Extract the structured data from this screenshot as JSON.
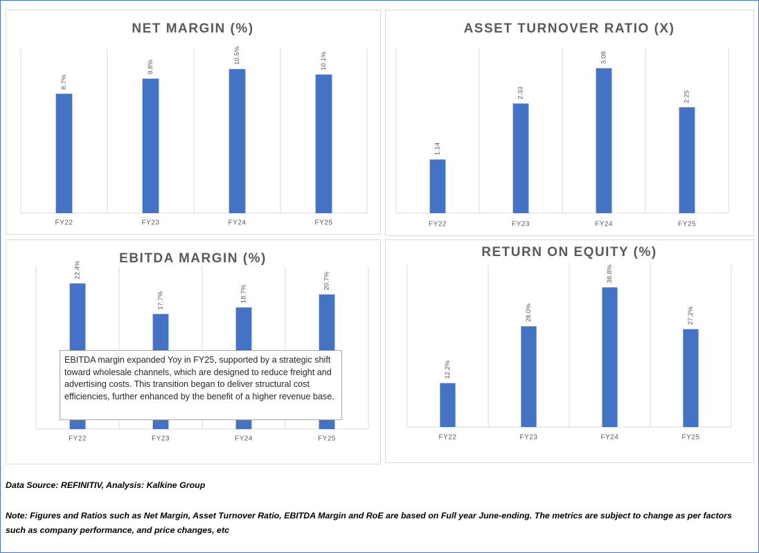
{
  "chart_data": [
    {
      "type": "bar",
      "title": "NET MARGIN (%)",
      "categories": [
        "FY22",
        "FY23",
        "FY24",
        "FY25"
      ],
      "values": [
        8.7,
        9.8,
        10.5,
        10.1
      ],
      "value_labels": [
        "8.7%",
        "9.8%",
        "10.5%",
        "10.1%"
      ],
      "color": "#4472c4",
      "ylim": [
        0,
        12
      ]
    },
    {
      "type": "bar",
      "title": "ASSET TURNOVER RATIO (X)",
      "categories": [
        "FY22",
        "FY23",
        "FY24",
        "FY25"
      ],
      "values": [
        1.14,
        2.33,
        3.08,
        2.25
      ],
      "color": "#4472c4",
      "ylim": [
        0,
        3.5
      ]
    },
    {
      "type": "bar",
      "title": "EBITDA MARGIN (%)",
      "categories": [
        "FY22",
        "FY23",
        "FY24",
        "FY25"
      ],
      "values": [
        22.4,
        17.7,
        18.7,
        20.7
      ],
      "value_labels": [
        "22.4%",
        "17.7%",
        "18.7%",
        "20.7%"
      ],
      "color": "#4472c4",
      "ylim": [
        0,
        25
      ],
      "annotation": "EBITDA margin expanded Yoy in FY25, supported by a strategic shift toward wholesale channels, which are designed to reduce freight and advertising costs. This transition began to deliver structural cost efficiencies, further enhanced by the benefit of a higher revenue base."
    },
    {
      "type": "bar",
      "title": "RETURN ON EQUITY (%)",
      "categories": [
        "FY22",
        "FY23",
        "FY24",
        "FY25"
      ],
      "values": [
        12.2,
        28.0,
        38.8,
        27.2
      ],
      "value_labels": [
        "12.2%",
        "28.0%",
        "38.8%",
        "27.2%"
      ],
      "color": "#4472c4",
      "ylim": [
        0,
        45
      ]
    }
  ],
  "source": "Data Source: REFINITIV, Analysis: Kalkine Group",
  "note": "Note: Figures and Ratios such as Net Margin, Asset Turnover Ratio, EBITDA Margin and RoE are based on Full year June-ending. The metrics are subject to change as per factors such as company performance, and price changes, etc"
}
